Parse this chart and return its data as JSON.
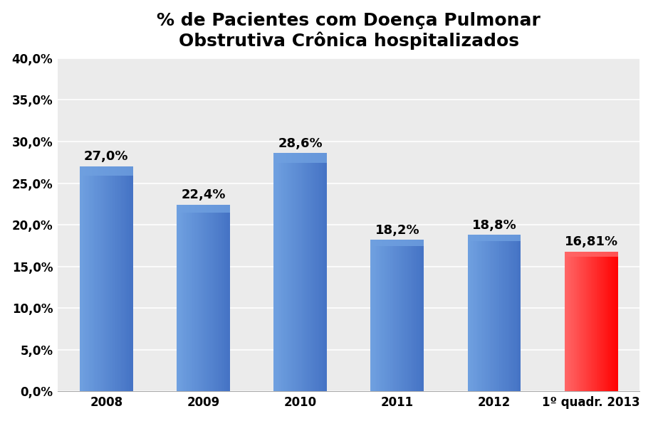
{
  "title": "% de Pacientes com Doença Pulmonar\nObstrutiva Crônica hospitalizados",
  "categories": [
    "2008",
    "2009",
    "2010",
    "2011",
    "2012",
    "1º quadr. 2013"
  ],
  "values": [
    27.0,
    22.4,
    28.6,
    18.2,
    18.8,
    16.81
  ],
  "labels": [
    "27,0%",
    "22,4%",
    "28,6%",
    "18,2%",
    "18,8%",
    "16,81%"
  ],
  "bar_colors": [
    "#4472C4",
    "#4472C4",
    "#4472C4",
    "#4472C4",
    "#4472C4",
    "#FF0000"
  ],
  "bar_colors_light": [
    "#6FA0E0",
    "#6FA0E0",
    "#6FA0E0",
    "#6FA0E0",
    "#6FA0E0",
    "#FF6666"
  ],
  "ylim": [
    0,
    40
  ],
  "yticks": [
    0,
    5,
    10,
    15,
    20,
    25,
    30,
    35,
    40
  ],
  "ytick_labels": [
    "0,0%",
    "5,0%",
    "10,0%",
    "15,0%",
    "20,0%",
    "25,0%",
    "30,0%",
    "35,0%",
    "40,0%"
  ],
  "background_color": "#FFFFFF",
  "plot_bg_color": "#EBEBEB",
  "title_fontsize": 18,
  "label_fontsize": 13,
  "tick_fontsize": 12,
  "bar_width": 0.55
}
